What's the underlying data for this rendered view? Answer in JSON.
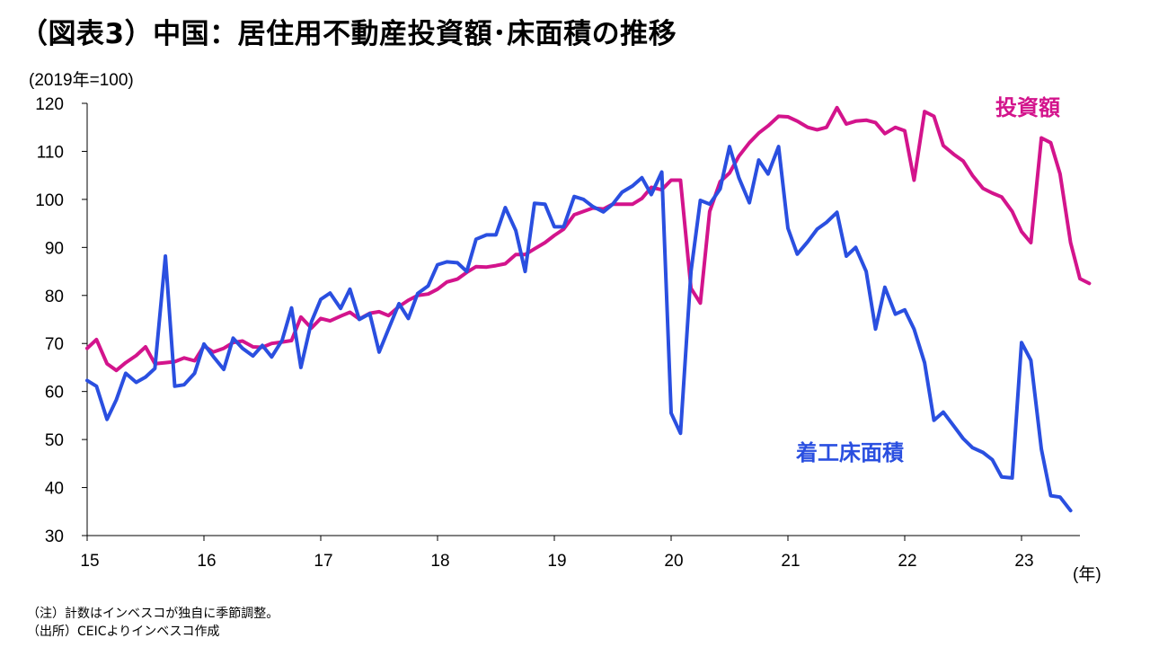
{
  "title": "（図表3）中国：居住用不動産投資額･床面積の推移",
  "notes": [
    "（注）計数はインベスコが独自に季節調整。",
    "（出所）CEICよりインベスコ作成"
  ],
  "colors": {
    "investment": "#d3148c",
    "floor_area": "#2a4fe0",
    "axis": "#000000"
  },
  "chart_data": {
    "type": "line",
    "ylabel": "(2019年=100)",
    "xlabel": "(年)",
    "ylim": [
      30,
      120
    ],
    "yticks": [
      "30",
      "40",
      "50",
      "60",
      "70",
      "80",
      "90",
      "100",
      "110",
      "120"
    ],
    "xlim": [
      2015.0,
      2023.5
    ],
    "xticks": [
      {
        "label": "15",
        "x": 2015
      },
      {
        "label": "16",
        "x": 2016
      },
      {
        "label": "17",
        "x": 2017
      },
      {
        "label": "18",
        "x": 2018
      },
      {
        "label": "19",
        "x": 2019
      },
      {
        "label": "20",
        "x": 2020
      },
      {
        "label": "21",
        "x": 2021
      },
      {
        "label": "22",
        "x": 2022
      },
      {
        "label": "23",
        "x": 2023
      }
    ],
    "grid": false,
    "legend": "inline labels",
    "series": [
      {
        "name": "投資額",
        "color_key": "investment",
        "points": [
          [
            2015.0,
            69.0
          ],
          [
            2015.08,
            70.8
          ],
          [
            2015.17,
            65.8
          ],
          [
            2015.25,
            64.4
          ],
          [
            2015.33,
            66.0
          ],
          [
            2015.42,
            67.5
          ],
          [
            2015.5,
            69.3
          ],
          [
            2015.58,
            65.8
          ],
          [
            2015.67,
            66.0
          ],
          [
            2015.75,
            66.2
          ],
          [
            2015.83,
            67.0
          ],
          [
            2015.92,
            66.4
          ],
          [
            2016.0,
            69.5
          ],
          [
            2016.08,
            68.2
          ],
          [
            2016.17,
            69.0
          ],
          [
            2016.25,
            70.2
          ],
          [
            2016.33,
            70.5
          ],
          [
            2016.42,
            69.3
          ],
          [
            2016.5,
            69.2
          ],
          [
            2016.58,
            70.0
          ],
          [
            2016.67,
            70.3
          ],
          [
            2016.75,
            70.6
          ],
          [
            2016.83,
            75.5
          ],
          [
            2016.92,
            73.2
          ],
          [
            2017.0,
            75.2
          ],
          [
            2017.08,
            74.7
          ],
          [
            2017.17,
            75.7
          ],
          [
            2017.25,
            76.5
          ],
          [
            2017.33,
            75.1
          ],
          [
            2017.42,
            76.3
          ],
          [
            2017.5,
            76.6
          ],
          [
            2017.58,
            75.8
          ],
          [
            2017.67,
            77.7
          ],
          [
            2017.75,
            79.0
          ],
          [
            2017.83,
            80.0
          ],
          [
            2017.92,
            80.3
          ],
          [
            2018.0,
            81.3
          ],
          [
            2018.08,
            82.8
          ],
          [
            2018.17,
            83.4
          ],
          [
            2018.25,
            84.8
          ],
          [
            2018.33,
            86.0
          ],
          [
            2018.42,
            85.9
          ],
          [
            2018.5,
            86.2
          ],
          [
            2018.58,
            86.6
          ],
          [
            2018.67,
            88.5
          ],
          [
            2018.75,
            88.5
          ],
          [
            2018.83,
            89.7
          ],
          [
            2018.92,
            91.0
          ],
          [
            2019.0,
            92.5
          ],
          [
            2019.08,
            93.8
          ],
          [
            2019.17,
            96.8
          ],
          [
            2019.25,
            97.5
          ],
          [
            2019.33,
            98.2
          ],
          [
            2019.42,
            98.0
          ],
          [
            2019.5,
            99.0
          ],
          [
            2019.58,
            99.0
          ],
          [
            2019.67,
            99.0
          ],
          [
            2019.75,
            100.2
          ],
          [
            2019.83,
            102.5
          ],
          [
            2019.92,
            102.0
          ],
          [
            2020.0,
            104.0
          ],
          [
            2020.08,
            104.0
          ],
          [
            2020.17,
            81.5
          ],
          [
            2020.25,
            78.4
          ],
          [
            2020.33,
            97.5
          ],
          [
            2020.42,
            103.7
          ],
          [
            2020.5,
            105.5
          ],
          [
            2020.58,
            109.0
          ],
          [
            2020.67,
            111.8
          ],
          [
            2020.75,
            113.8
          ],
          [
            2020.83,
            115.3
          ],
          [
            2020.92,
            117.3
          ],
          [
            2021.0,
            117.2
          ],
          [
            2021.08,
            116.3
          ],
          [
            2021.17,
            115.0
          ],
          [
            2021.25,
            114.5
          ],
          [
            2021.33,
            115.0
          ],
          [
            2021.42,
            119.1
          ],
          [
            2021.5,
            115.7
          ],
          [
            2021.58,
            116.3
          ],
          [
            2021.67,
            116.5
          ],
          [
            2021.75,
            116.0
          ],
          [
            2021.83,
            113.7
          ],
          [
            2021.92,
            115.0
          ],
          [
            2022.0,
            114.3
          ],
          [
            2022.08,
            104.0
          ],
          [
            2022.17,
            118.3
          ],
          [
            2022.25,
            117.3
          ],
          [
            2022.33,
            111.2
          ],
          [
            2022.42,
            109.4
          ],
          [
            2022.5,
            108.0
          ],
          [
            2022.58,
            105.0
          ],
          [
            2022.67,
            102.3
          ],
          [
            2022.75,
            101.3
          ],
          [
            2022.83,
            100.5
          ],
          [
            2022.92,
            97.5
          ],
          [
            2023.0,
            93.3
          ],
          [
            2023.08,
            91.0
          ],
          [
            2023.17,
            112.8
          ],
          [
            2023.25,
            111.8
          ],
          [
            2023.33,
            105.3
          ],
          [
            2023.42,
            91.0
          ],
          [
            2023.5,
            83.5
          ],
          [
            2023.58,
            82.5
          ]
        ]
      },
      {
        "name": "着工床面積",
        "color_key": "floor_area",
        "points": [
          [
            2015.0,
            62.3
          ],
          [
            2015.08,
            61.1
          ],
          [
            2015.17,
            54.2
          ],
          [
            2015.25,
            58.3
          ],
          [
            2015.33,
            63.8
          ],
          [
            2015.42,
            61.9
          ],
          [
            2015.5,
            63.0
          ],
          [
            2015.58,
            64.8
          ],
          [
            2015.67,
            88.2
          ],
          [
            2015.75,
            61.1
          ],
          [
            2015.83,
            61.4
          ],
          [
            2015.92,
            63.8
          ],
          [
            2016.0,
            69.9
          ],
          [
            2016.08,
            67.3
          ],
          [
            2016.17,
            64.6
          ],
          [
            2016.25,
            71.1
          ],
          [
            2016.33,
            69.0
          ],
          [
            2016.42,
            67.4
          ],
          [
            2016.5,
            69.6
          ],
          [
            2016.58,
            67.2
          ],
          [
            2016.67,
            70.7
          ],
          [
            2016.75,
            77.4
          ],
          [
            2016.83,
            65.0
          ],
          [
            2016.92,
            74.5
          ],
          [
            2017.0,
            79.2
          ],
          [
            2017.08,
            80.5
          ],
          [
            2017.17,
            77.3
          ],
          [
            2017.25,
            81.3
          ],
          [
            2017.33,
            75.0
          ],
          [
            2017.42,
            76.2
          ],
          [
            2017.5,
            68.2
          ],
          [
            2017.58,
            73.0
          ],
          [
            2017.67,
            78.3
          ],
          [
            2017.75,
            75.2
          ],
          [
            2017.83,
            80.4
          ],
          [
            2017.92,
            82.0
          ],
          [
            2018.0,
            86.4
          ],
          [
            2018.08,
            87.0
          ],
          [
            2018.17,
            86.8
          ],
          [
            2018.25,
            85.0
          ],
          [
            2018.33,
            91.7
          ],
          [
            2018.42,
            92.6
          ],
          [
            2018.5,
            92.6
          ],
          [
            2018.58,
            98.3
          ],
          [
            2018.67,
            93.5
          ],
          [
            2018.75,
            85.0
          ],
          [
            2018.83,
            99.2
          ],
          [
            2018.92,
            99.0
          ],
          [
            2019.0,
            94.3
          ],
          [
            2019.08,
            94.3
          ],
          [
            2019.17,
            100.6
          ],
          [
            2019.25,
            100.0
          ],
          [
            2019.33,
            98.5
          ],
          [
            2019.42,
            97.4
          ],
          [
            2019.5,
            99.0
          ],
          [
            2019.58,
            101.5
          ],
          [
            2019.67,
            102.8
          ],
          [
            2019.75,
            104.5
          ],
          [
            2019.83,
            101.0
          ],
          [
            2019.92,
            105.7
          ],
          [
            2020.0,
            55.5
          ],
          [
            2020.08,
            51.3
          ],
          [
            2020.17,
            85.0
          ],
          [
            2020.25,
            99.8
          ],
          [
            2020.33,
            99.0
          ],
          [
            2020.42,
            102.2
          ],
          [
            2020.5,
            111.0
          ],
          [
            2020.58,
            104.5
          ],
          [
            2020.67,
            99.3
          ],
          [
            2020.75,
            108.2
          ],
          [
            2020.83,
            105.3
          ],
          [
            2020.92,
            111.0
          ],
          [
            2021.0,
            94.0
          ],
          [
            2021.08,
            88.6
          ],
          [
            2021.17,
            91.2
          ],
          [
            2021.25,
            93.8
          ],
          [
            2021.33,
            95.2
          ],
          [
            2021.42,
            97.3
          ],
          [
            2021.5,
            88.2
          ],
          [
            2021.58,
            90.0
          ],
          [
            2021.67,
            85.0
          ],
          [
            2021.75,
            73.0
          ],
          [
            2021.83,
            81.7
          ],
          [
            2021.92,
            76.1
          ],
          [
            2022.0,
            77.0
          ],
          [
            2022.08,
            73.0
          ],
          [
            2022.17,
            66.0
          ],
          [
            2022.25,
            54.0
          ],
          [
            2022.33,
            55.7
          ],
          [
            2022.42,
            52.8
          ],
          [
            2022.5,
            50.2
          ],
          [
            2022.58,
            48.3
          ],
          [
            2022.67,
            47.3
          ],
          [
            2022.75,
            45.8
          ],
          [
            2022.83,
            42.2
          ],
          [
            2022.92,
            42.0
          ],
          [
            2023.0,
            70.2
          ],
          [
            2023.08,
            66.5
          ],
          [
            2023.17,
            48.0
          ],
          [
            2023.25,
            38.3
          ],
          [
            2023.33,
            38.0
          ],
          [
            2023.42,
            35.2
          ]
        ]
      }
    ]
  }
}
